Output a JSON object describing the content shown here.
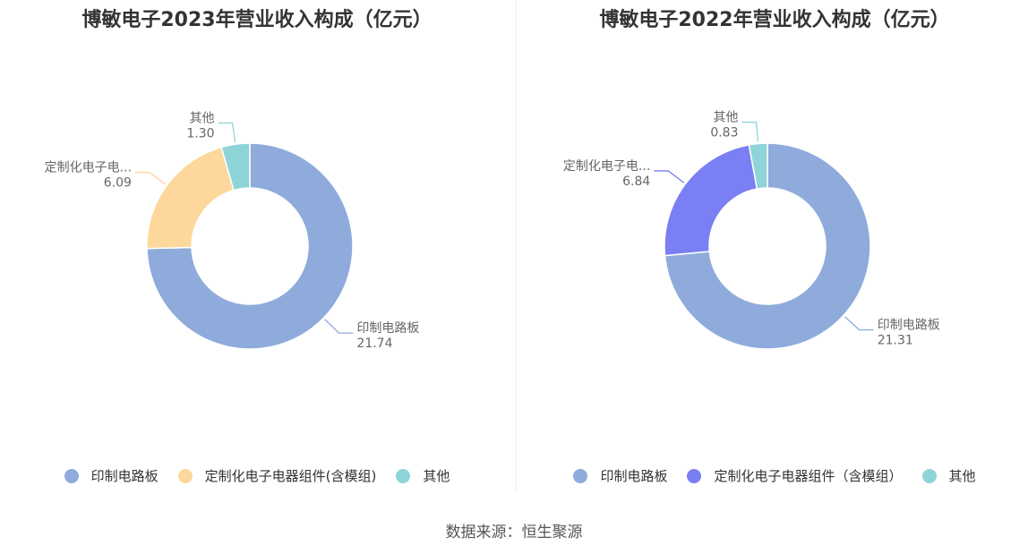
{
  "footer": {
    "source_label": "数据来源：恒生聚源"
  },
  "chart_data": [
    {
      "type": "pie",
      "variant": "donut",
      "title": "博敏电子2023年营业收入构成（亿元）",
      "slices": [
        {
          "name": "印制电路板",
          "label": "印制电路板",
          "value": 21.74,
          "value_text": "21.74",
          "color": "#8eabdb"
        },
        {
          "name": "定制化电子电器组件(含模组)",
          "label": "定制化电子电...",
          "value": 6.09,
          "value_text": "6.09",
          "color": "#fdd79b"
        },
        {
          "name": "其他",
          "label": "其他",
          "value": 1.3,
          "value_text": "1.30",
          "color": "#8ed4d8"
        }
      ],
      "legend_position": "bottom"
    },
    {
      "type": "pie",
      "variant": "donut",
      "title": "博敏电子2022年营业收入构成（亿元）",
      "slices": [
        {
          "name": "印制电路板",
          "label": "印制电路板",
          "value": 21.31,
          "value_text": "21.31",
          "color": "#8eabdb"
        },
        {
          "name": "定制化电子电器组件（含模组）",
          "label": "定制化电子电...",
          "value": 6.84,
          "value_text": "6.84",
          "color": "#7a7ff4"
        },
        {
          "name": "其他",
          "label": "其他",
          "value": 0.83,
          "value_text": "0.83",
          "color": "#8ed4d8"
        }
      ],
      "legend_position": "bottom"
    }
  ]
}
